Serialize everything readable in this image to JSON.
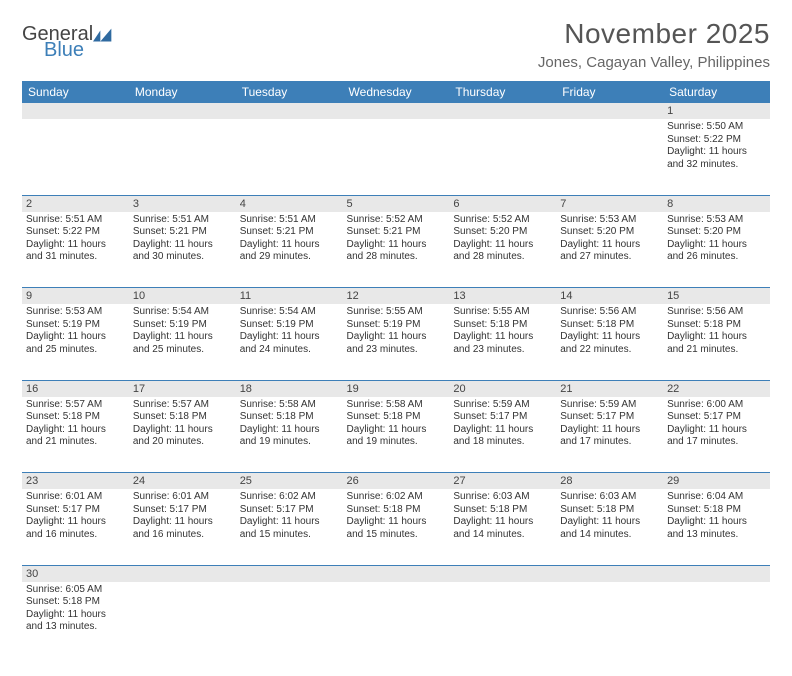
{
  "logo": {
    "text1": "General",
    "text2": "Blue",
    "color1": "#555555",
    "color2": "#3d7fb8",
    "flag_color": "#2f6aa0"
  },
  "title": "November 2025",
  "location": "Jones, Cagayan Valley, Philippines",
  "header_bg": "#3d7fb8",
  "daynum_bg": "#e8e8e8",
  "border_color": "#3d7fb8",
  "weekdays": [
    "Sunday",
    "Monday",
    "Tuesday",
    "Wednesday",
    "Thursday",
    "Friday",
    "Saturday"
  ],
  "weeks": [
    {
      "nums": [
        "",
        "",
        "",
        "",
        "",
        "",
        "1"
      ],
      "cells": [
        null,
        null,
        null,
        null,
        null,
        null,
        {
          "sunrise": "Sunrise: 5:50 AM",
          "sunset": "Sunset: 5:22 PM",
          "daylight": "Daylight: 11 hours and 32 minutes."
        }
      ]
    },
    {
      "nums": [
        "2",
        "3",
        "4",
        "5",
        "6",
        "7",
        "8"
      ],
      "cells": [
        {
          "sunrise": "Sunrise: 5:51 AM",
          "sunset": "Sunset: 5:22 PM",
          "daylight": "Daylight: 11 hours and 31 minutes."
        },
        {
          "sunrise": "Sunrise: 5:51 AM",
          "sunset": "Sunset: 5:21 PM",
          "daylight": "Daylight: 11 hours and 30 minutes."
        },
        {
          "sunrise": "Sunrise: 5:51 AM",
          "sunset": "Sunset: 5:21 PM",
          "daylight": "Daylight: 11 hours and 29 minutes."
        },
        {
          "sunrise": "Sunrise: 5:52 AM",
          "sunset": "Sunset: 5:21 PM",
          "daylight": "Daylight: 11 hours and 28 minutes."
        },
        {
          "sunrise": "Sunrise: 5:52 AM",
          "sunset": "Sunset: 5:20 PM",
          "daylight": "Daylight: 11 hours and 28 minutes."
        },
        {
          "sunrise": "Sunrise: 5:53 AM",
          "sunset": "Sunset: 5:20 PM",
          "daylight": "Daylight: 11 hours and 27 minutes."
        },
        {
          "sunrise": "Sunrise: 5:53 AM",
          "sunset": "Sunset: 5:20 PM",
          "daylight": "Daylight: 11 hours and 26 minutes."
        }
      ]
    },
    {
      "nums": [
        "9",
        "10",
        "11",
        "12",
        "13",
        "14",
        "15"
      ],
      "cells": [
        {
          "sunrise": "Sunrise: 5:53 AM",
          "sunset": "Sunset: 5:19 PM",
          "daylight": "Daylight: 11 hours and 25 minutes."
        },
        {
          "sunrise": "Sunrise: 5:54 AM",
          "sunset": "Sunset: 5:19 PM",
          "daylight": "Daylight: 11 hours and 25 minutes."
        },
        {
          "sunrise": "Sunrise: 5:54 AM",
          "sunset": "Sunset: 5:19 PM",
          "daylight": "Daylight: 11 hours and 24 minutes."
        },
        {
          "sunrise": "Sunrise: 5:55 AM",
          "sunset": "Sunset: 5:19 PM",
          "daylight": "Daylight: 11 hours and 23 minutes."
        },
        {
          "sunrise": "Sunrise: 5:55 AM",
          "sunset": "Sunset: 5:18 PM",
          "daylight": "Daylight: 11 hours and 23 minutes."
        },
        {
          "sunrise": "Sunrise: 5:56 AM",
          "sunset": "Sunset: 5:18 PM",
          "daylight": "Daylight: 11 hours and 22 minutes."
        },
        {
          "sunrise": "Sunrise: 5:56 AM",
          "sunset": "Sunset: 5:18 PM",
          "daylight": "Daylight: 11 hours and 21 minutes."
        }
      ]
    },
    {
      "nums": [
        "16",
        "17",
        "18",
        "19",
        "20",
        "21",
        "22"
      ],
      "cells": [
        {
          "sunrise": "Sunrise: 5:57 AM",
          "sunset": "Sunset: 5:18 PM",
          "daylight": "Daylight: 11 hours and 21 minutes."
        },
        {
          "sunrise": "Sunrise: 5:57 AM",
          "sunset": "Sunset: 5:18 PM",
          "daylight": "Daylight: 11 hours and 20 minutes."
        },
        {
          "sunrise": "Sunrise: 5:58 AM",
          "sunset": "Sunset: 5:18 PM",
          "daylight": "Daylight: 11 hours and 19 minutes."
        },
        {
          "sunrise": "Sunrise: 5:58 AM",
          "sunset": "Sunset: 5:18 PM",
          "daylight": "Daylight: 11 hours and 19 minutes."
        },
        {
          "sunrise": "Sunrise: 5:59 AM",
          "sunset": "Sunset: 5:17 PM",
          "daylight": "Daylight: 11 hours and 18 minutes."
        },
        {
          "sunrise": "Sunrise: 5:59 AM",
          "sunset": "Sunset: 5:17 PM",
          "daylight": "Daylight: 11 hours and 17 minutes."
        },
        {
          "sunrise": "Sunrise: 6:00 AM",
          "sunset": "Sunset: 5:17 PM",
          "daylight": "Daylight: 11 hours and 17 minutes."
        }
      ]
    },
    {
      "nums": [
        "23",
        "24",
        "25",
        "26",
        "27",
        "28",
        "29"
      ],
      "cells": [
        {
          "sunrise": "Sunrise: 6:01 AM",
          "sunset": "Sunset: 5:17 PM",
          "daylight": "Daylight: 11 hours and 16 minutes."
        },
        {
          "sunrise": "Sunrise: 6:01 AM",
          "sunset": "Sunset: 5:17 PM",
          "daylight": "Daylight: 11 hours and 16 minutes."
        },
        {
          "sunrise": "Sunrise: 6:02 AM",
          "sunset": "Sunset: 5:17 PM",
          "daylight": "Daylight: 11 hours and 15 minutes."
        },
        {
          "sunrise": "Sunrise: 6:02 AM",
          "sunset": "Sunset: 5:18 PM",
          "daylight": "Daylight: 11 hours and 15 minutes."
        },
        {
          "sunrise": "Sunrise: 6:03 AM",
          "sunset": "Sunset: 5:18 PM",
          "daylight": "Daylight: 11 hours and 14 minutes."
        },
        {
          "sunrise": "Sunrise: 6:03 AM",
          "sunset": "Sunset: 5:18 PM",
          "daylight": "Daylight: 11 hours and 14 minutes."
        },
        {
          "sunrise": "Sunrise: 6:04 AM",
          "sunset": "Sunset: 5:18 PM",
          "daylight": "Daylight: 11 hours and 13 minutes."
        }
      ]
    },
    {
      "nums": [
        "30",
        "",
        "",
        "",
        "",
        "",
        ""
      ],
      "cells": [
        {
          "sunrise": "Sunrise: 6:05 AM",
          "sunset": "Sunset: 5:18 PM",
          "daylight": "Daylight: 11 hours and 13 minutes."
        },
        null,
        null,
        null,
        null,
        null,
        null
      ]
    }
  ]
}
